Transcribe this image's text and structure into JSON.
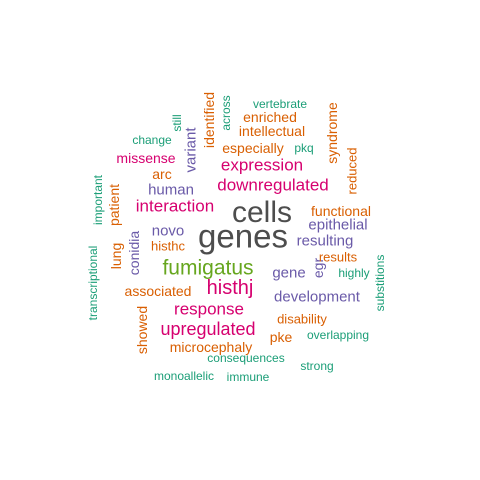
{
  "palette": {
    "dark": "#4d4d4d",
    "green": "#66a61e",
    "pink": "#d6006f",
    "purple": "#6a5aa8",
    "orange": "#d95f02",
    "teal": "#1b9e77"
  },
  "words": {
    "genes": "genes",
    "cells": "cells",
    "fumigatus": "fumigatus",
    "histhj": "histhj",
    "expression": "expression",
    "downregulated": "downregulated",
    "interaction": "interaction",
    "upregulated": "upregulated",
    "response": "response",
    "development": "development",
    "gene": "gene",
    "human": "human",
    "variant": "variant",
    "novo": "novo",
    "conidia": "conidia",
    "resulting": "resulting",
    "epithelial": "epithelial",
    "egr": "egr",
    "functional": "functional",
    "results": "results",
    "lung": "lung",
    "patient": "patient",
    "arc": "arc",
    "missense": "missense",
    "histhc": "histhc",
    "associated": "associated",
    "showed": "showed",
    "microcephaly": "microcephaly",
    "disability": "disability",
    "pke": "pke",
    "syndrome": "syndrome",
    "reduced": "reduced",
    "identified": "identified",
    "intellectual": "intellectual",
    "enriched": "enriched",
    "especially": "especially",
    "across": "across",
    "vertebrate": "vertebrate",
    "pkq": "pkq",
    "still": "still",
    "change": "change",
    "important": "important",
    "transcriptional": "transcriptional",
    "highly": "highly",
    "substitutions": "substitions",
    "overlapping": "overlapping",
    "consequences": "consequences",
    "strong": "strong",
    "monoallelic": "monoallelic",
    "immune": "immune"
  }
}
